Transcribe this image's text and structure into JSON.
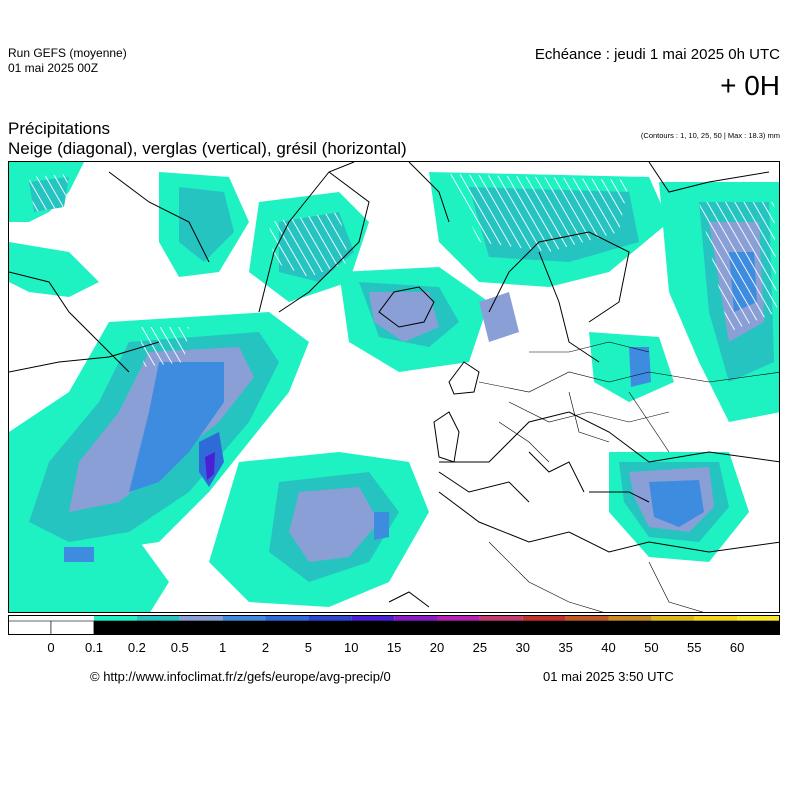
{
  "header": {
    "run_name": "Run GEFS (moyenne)",
    "run_date": "01 mai 2025 00Z",
    "echeance": "Echéance : jeudi 1 mai 2025 0h UTC",
    "offset": "+ 0H"
  },
  "title": {
    "line1": "Précipitations",
    "line2": "Neige (diagonal), verglas (vertical), grésil (horizontal)",
    "contours": "(Contours : 1, 10, 25, 50 | Max : 18.3) mm"
  },
  "legend": {
    "labels": [
      "0",
      "0.1",
      "0.2",
      "0.5",
      "1",
      "2",
      "5",
      "10",
      "15",
      "20",
      "25",
      "30",
      "35",
      "40",
      "50",
      "55",
      "60"
    ],
    "colors": [
      "#ffffff",
      "#ffffff",
      "#1ef2c3",
      "#25c4c0",
      "#8a9fd5",
      "#3d8ce0",
      "#2e6bd8",
      "#2c46d2",
      "#4a1fd6",
      "#8a1dc9",
      "#b81fb3",
      "#c43a72",
      "#c4302b",
      "#c25a22",
      "#c98a22",
      "#d9b81c",
      "#f0d41a",
      "#f7e92a"
    ],
    "unit": "mm"
  },
  "footer": {
    "copyright": "© http://www.infoclimat.fr/z/gefs/europe/avg-precip/0",
    "stamp": "01 mai 2025  3:50 UTC"
  }
}
